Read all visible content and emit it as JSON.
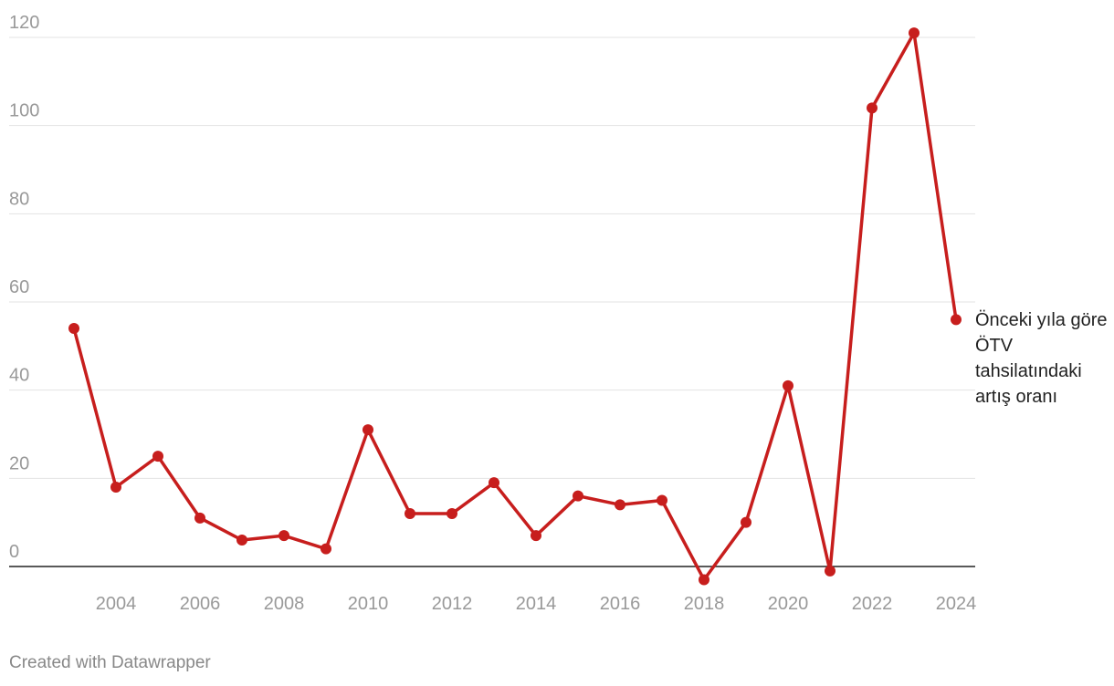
{
  "chart_data": {
    "type": "line",
    "x": [
      2003,
      2004,
      2005,
      2006,
      2007,
      2008,
      2009,
      2010,
      2011,
      2012,
      2013,
      2014,
      2015,
      2016,
      2017,
      2018,
      2019,
      2020,
      2021,
      2022,
      2023,
      2024
    ],
    "series": [
      {
        "name": "Önceki yıla göre ÖTV tahsilatındaki artış oranı",
        "color": "#c71e1d",
        "values": [
          54,
          18,
          25,
          11,
          6,
          7,
          4,
          31,
          12,
          12,
          19,
          7,
          16,
          14,
          15,
          -3,
          10,
          41,
          -1,
          104,
          121,
          56
        ]
      }
    ],
    "xlim": [
      2003,
      2024
    ],
    "xticks": [
      2004,
      2006,
      2008,
      2010,
      2012,
      2014,
      2016,
      2018,
      2020,
      2022,
      2024
    ],
    "ylim": [
      0,
      120
    ],
    "yticks": [
      0,
      20,
      40,
      60,
      80,
      100,
      120
    ],
    "grid": true,
    "footer": "Created with Datawrapper"
  }
}
